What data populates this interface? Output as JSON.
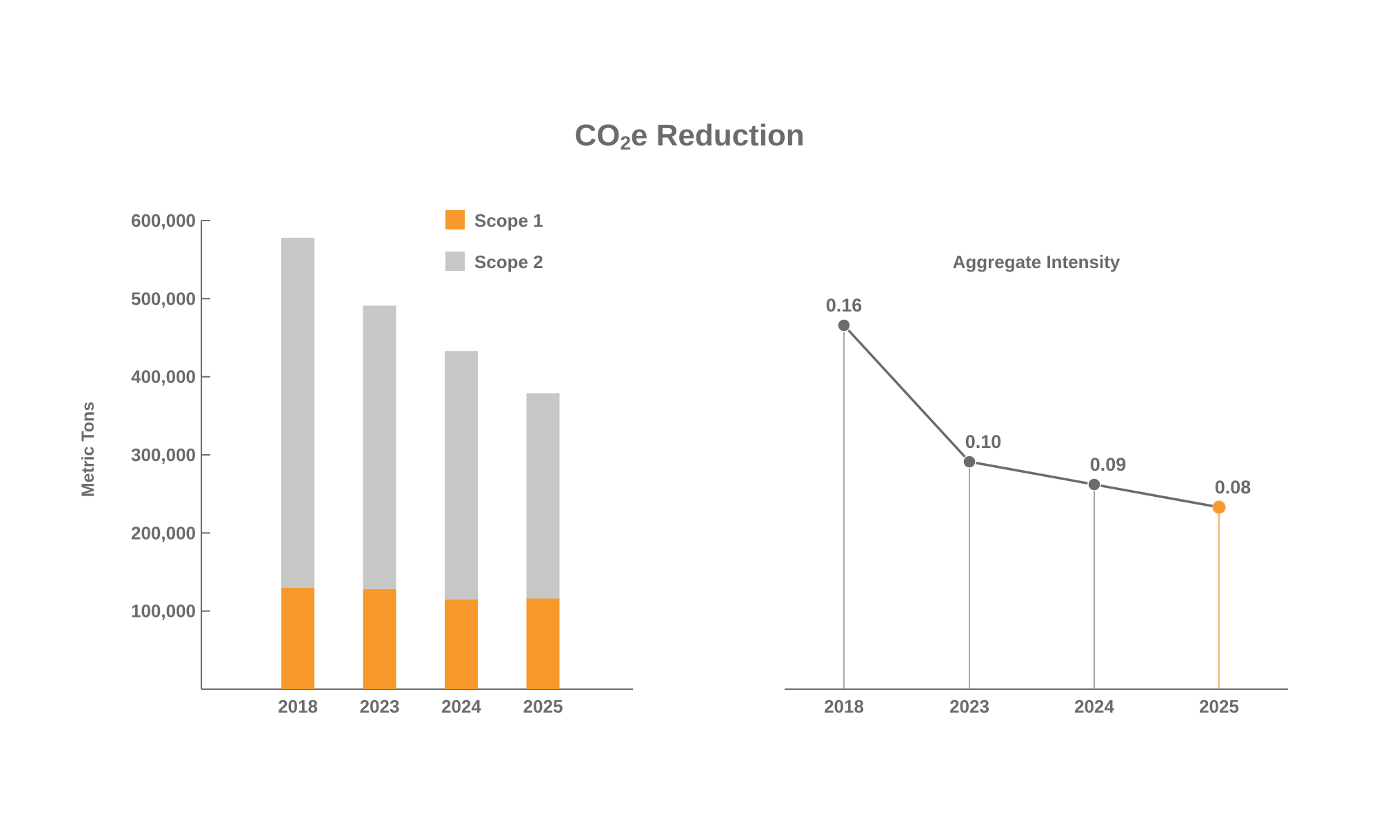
{
  "title": {
    "main": "CO",
    "sub": "2",
    "suffix": "e Reduction"
  },
  "colors": {
    "scope1": "#f7982a",
    "scope2": "#c8c7c8",
    "text": "#6b6b6e",
    "axis": "#6b6b6e",
    "line": "#6b6b6e",
    "highlight": "#f7982a"
  },
  "chart_data": [
    {
      "type": "bar",
      "stacked": true,
      "title": "",
      "xlabel": "",
      "ylabel": "Metric Tons",
      "categories": [
        "2018",
        "2023",
        "2024",
        "2025"
      ],
      "ylim": [
        0,
        600000
      ],
      "yticks": [
        100000,
        200000,
        300000,
        400000,
        500000,
        600000
      ],
      "ytick_labels": [
        "100,000",
        "200,000",
        "300,000",
        "400,000",
        "500,000",
        "600,000"
      ],
      "legend_position": "top-right",
      "grid": false,
      "series": [
        {
          "name": "Scope 1",
          "values": [
            130000,
            128000,
            115000,
            116000
          ]
        },
        {
          "name": "Scope 2",
          "values": [
            448000,
            363000,
            318000,
            263000
          ]
        }
      ]
    },
    {
      "type": "line",
      "title": "Aggregate Intensity",
      "xlabel": "",
      "ylabel": "",
      "categories": [
        "2018",
        "2023",
        "2024",
        "2025"
      ],
      "values": [
        0.16,
        0.1,
        0.09,
        0.08
      ],
      "value_labels": [
        "0.16",
        "0.10",
        "0.09",
        "0.08"
      ],
      "highlight_index": 3,
      "ylim": [
        0,
        0.2
      ],
      "grid": false
    }
  ]
}
